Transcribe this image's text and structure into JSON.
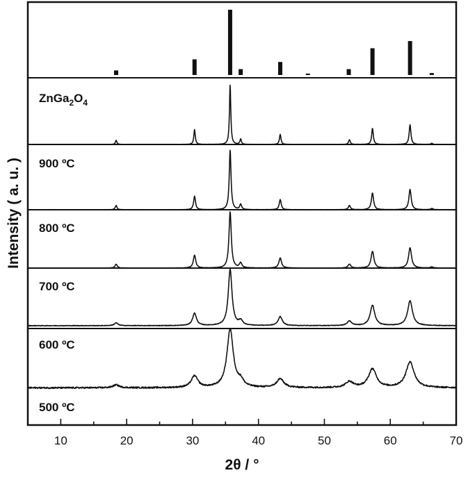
{
  "colors": {
    "line": "#111111",
    "background": "#ffffff"
  },
  "chart_data": {
    "type": "line",
    "xlabel": "2θ / °",
    "ylabel": "Intensity ( a. u. )",
    "xlim": [
      5,
      70
    ],
    "xticks": [
      "10",
      "20",
      "30",
      "40",
      "50",
      "60",
      "70"
    ],
    "grid": false,
    "legend": "none",
    "reference": {
      "name": "ZnGa2O4",
      "label_main": "ZnGa",
      "label_sub1": "2",
      "label_mid": "O",
      "label_sub2": "4",
      "peaks": [
        {
          "x": 18.4,
          "y": 7
        },
        {
          "x": 30.3,
          "y": 24
        },
        {
          "x": 35.7,
          "y": 100
        },
        {
          "x": 37.3,
          "y": 9
        },
        {
          "x": 43.3,
          "y": 20
        },
        {
          "x": 47.5,
          "y": 1
        },
        {
          "x": 53.7,
          "y": 9
        },
        {
          "x": 57.3,
          "y": 41
        },
        {
          "x": 63.0,
          "y": 52
        },
        {
          "x": 66.3,
          "y": 3
        }
      ]
    },
    "series": [
      {
        "name": "900 ºC",
        "baseline": 0,
        "noise": 0.004,
        "peaks": [
          {
            "x": 18.4,
            "h": 7,
            "w": 0.13
          },
          {
            "x": 30.3,
            "h": 25,
            "w": 0.13
          },
          {
            "x": 35.7,
            "h": 100,
            "w": 0.12
          },
          {
            "x": 37.3,
            "h": 9,
            "w": 0.13
          },
          {
            "x": 43.3,
            "h": 17,
            "w": 0.14
          },
          {
            "x": 53.8,
            "h": 8,
            "w": 0.15
          },
          {
            "x": 57.3,
            "h": 27,
            "w": 0.15
          },
          {
            "x": 63.0,
            "h": 33,
            "w": 0.16
          },
          {
            "x": 66.3,
            "h": 2,
            "w": 0.15
          }
        ]
      },
      {
        "name": "800 ºC",
        "baseline": 0,
        "noise": 0.005,
        "peaks": [
          {
            "x": 18.4,
            "h": 7,
            "w": 0.16
          },
          {
            "x": 30.3,
            "h": 23,
            "w": 0.17
          },
          {
            "x": 35.7,
            "h": 100,
            "w": 0.16
          },
          {
            "x": 37.3,
            "h": 9,
            "w": 0.17
          },
          {
            "x": 43.3,
            "h": 17,
            "w": 0.18
          },
          {
            "x": 53.8,
            "h": 7,
            "w": 0.19
          },
          {
            "x": 57.3,
            "h": 28,
            "w": 0.2
          },
          {
            "x": 63.0,
            "h": 34,
            "w": 0.21
          },
          {
            "x": 66.3,
            "h": 2,
            "w": 0.2
          }
        ]
      },
      {
        "name": "700 ºC",
        "baseline": 0,
        "noise": 0.006,
        "peaks": [
          {
            "x": 18.4,
            "h": 7,
            "w": 0.2
          },
          {
            "x": 30.3,
            "h": 23,
            "w": 0.22
          },
          {
            "x": 35.7,
            "h": 100,
            "w": 0.21
          },
          {
            "x": 37.3,
            "h": 9,
            "w": 0.22
          },
          {
            "x": 43.3,
            "h": 18,
            "w": 0.24
          },
          {
            "x": 53.8,
            "h": 7,
            "w": 0.25
          },
          {
            "x": 57.3,
            "h": 30,
            "w": 0.26
          },
          {
            "x": 63.0,
            "h": 36,
            "w": 0.27
          },
          {
            "x": 66.3,
            "h": 2,
            "w": 0.25
          }
        ]
      },
      {
        "name": "600 ºC",
        "baseline": 0.05,
        "noise": 0.01,
        "peaks": [
          {
            "x": 18.4,
            "h": 5,
            "w": 0.33
          },
          {
            "x": 30.3,
            "h": 22,
            "w": 0.35
          },
          {
            "x": 35.7,
            "h": 100,
            "w": 0.34
          },
          {
            "x": 37.3,
            "h": 8,
            "w": 0.35
          },
          {
            "x": 43.3,
            "h": 16,
            "w": 0.38
          },
          {
            "x": 53.8,
            "h": 8,
            "w": 0.4
          },
          {
            "x": 57.3,
            "h": 36,
            "w": 0.42
          },
          {
            "x": 63.0,
            "h": 44,
            "w": 0.44
          }
        ]
      },
      {
        "name": "500 ºC",
        "baseline": 0.09,
        "noise": 0.025,
        "peaks": [
          {
            "x": 18.4,
            "h": 5,
            "w": 0.55
          },
          {
            "x": 30.3,
            "h": 20,
            "w": 0.6
          },
          {
            "x": 35.7,
            "h": 100,
            "w": 0.58
          },
          {
            "x": 37.3,
            "h": 10,
            "w": 0.5
          },
          {
            "x": 43.3,
            "h": 15,
            "w": 0.65
          },
          {
            "x": 53.8,
            "h": 10,
            "w": 0.7
          },
          {
            "x": 57.3,
            "h": 32,
            "w": 0.72
          },
          {
            "x": 63.0,
            "h": 44,
            "w": 0.75
          }
        ]
      }
    ]
  }
}
